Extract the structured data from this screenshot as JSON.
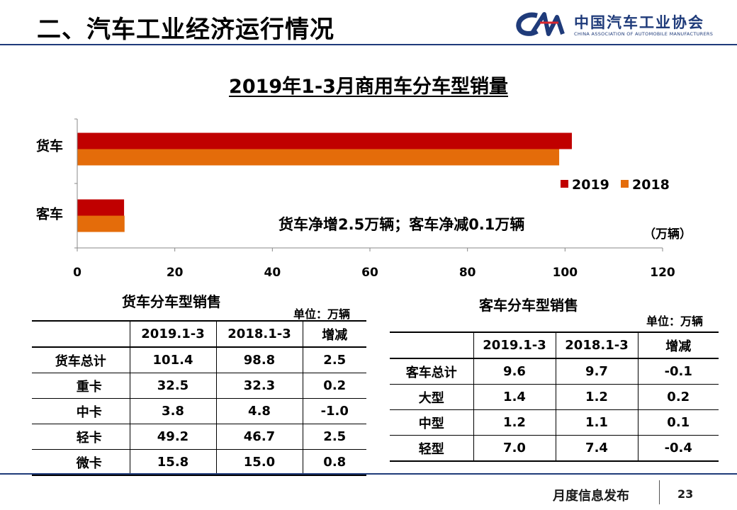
{
  "header": {
    "title": "二、汽车工业经济运行情况"
  },
  "logo": {
    "mark": "CAM",
    "name_cn": "中国汽车工业协会",
    "name_en": "CHINA ASSOCIATION OF AUTOMOBILE MANUFACTURERS"
  },
  "chart_data": {
    "type": "bar",
    "orientation": "horizontal",
    "title": "2019年1-3月商用车分车型销量",
    "categories": [
      "货车",
      "客车"
    ],
    "series": [
      {
        "name": "2019",
        "values": [
          101.4,
          9.6
        ],
        "color": "#c00000"
      },
      {
        "name": "2018",
        "values": [
          98.8,
          9.7
        ],
        "color": "#e46c0a"
      }
    ],
    "xlim": [
      0,
      120
    ],
    "x_ticks": [
      "0",
      "20",
      "40",
      "60",
      "80",
      "100",
      "120"
    ],
    "unit_label": "（万辆）",
    "annotation": "货车净增2.5万辆；客车净减0.1万辆",
    "legend_position": "right",
    "grid": false
  },
  "truck_table": {
    "caption": "货车分车型销售",
    "unit": "单位：万辆",
    "headers": [
      "",
      "2019.1-3",
      "2018.1-3",
      "增减"
    ],
    "rows": [
      [
        "货车总计",
        "101.4",
        "98.8",
        "2.5"
      ],
      [
        "重卡",
        "32.5",
        "32.3",
        "0.2"
      ],
      [
        "中卡",
        "3.8",
        "4.8",
        "-1.0"
      ],
      [
        "轻卡",
        "49.2",
        "46.7",
        "2.5"
      ],
      [
        "微卡",
        "15.8",
        "15.0",
        "0.8"
      ]
    ]
  },
  "bus_table": {
    "caption": "客车分车型销售",
    "unit": "单位：万辆",
    "headers": [
      "",
      "2019.1-3",
      "2018.1-3",
      "增减"
    ],
    "rows": [
      [
        "客车总计",
        "9.6",
        "9.7",
        "-0.1"
      ],
      [
        "大型",
        "1.4",
        "1.2",
        "0.2"
      ],
      [
        "中型",
        "1.2",
        "1.1",
        "0.1"
      ],
      [
        "轻型",
        "7.0",
        "7.4",
        "-0.4"
      ]
    ]
  },
  "footer": {
    "text": "月度信息发布",
    "page": "23"
  }
}
